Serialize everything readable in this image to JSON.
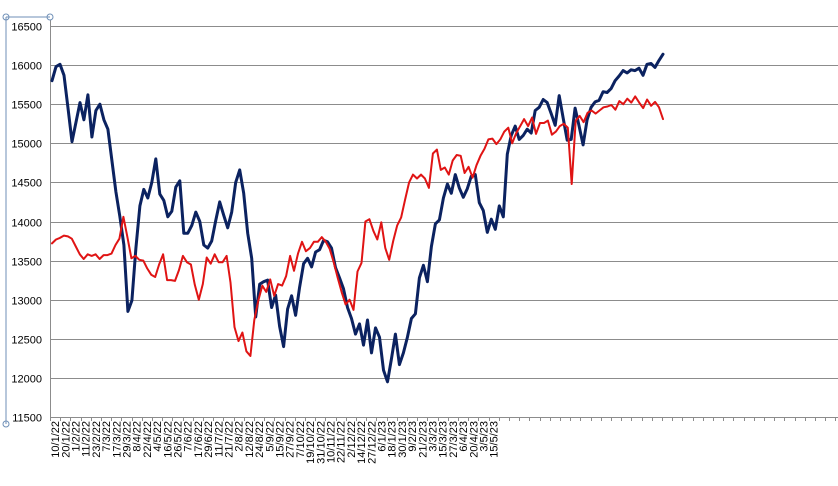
{
  "chart_data": {
    "type": "line",
    "title": "",
    "xlabel": "",
    "ylabel": "",
    "ylim": [
      11500,
      16500
    ],
    "yticks": [
      11500,
      12000,
      12500,
      13000,
      13500,
      14000,
      14500,
      15000,
      15500,
      16000,
      16500
    ],
    "grid": true,
    "legend": "none",
    "x_tick_labels": [
      "10/1/22",
      "20/1/22",
      "1/2/22",
      "11/2/22",
      "23/2/22",
      "7/3/22",
      "17/3/22",
      "29/3/22",
      "8/4/22",
      "22/4/22",
      "4/5/22",
      "16/5/22",
      "26/5/22",
      "7/6/22",
      "17/6/22",
      "29/6/22",
      "11/7/22",
      "21/7/22",
      "2/8/22",
      "12/8/22",
      "24/8/22",
      "5/9/22",
      "15/9/22",
      "27/9/22",
      "7/10/22",
      "19/10/22",
      "31/10/22",
      "10/11/22",
      "22/11/22",
      "2/12/22",
      "14/12/22",
      "27/12/22",
      "6/1/23",
      "18/1/23",
      "30/1/23",
      "9/2/23",
      "21/2/23",
      "3/3/23",
      "15/3/23",
      "27/3/23",
      "6/4/23",
      "20/4/23",
      "3/5/23",
      "15/5/23"
    ],
    "series": [
      {
        "color": "#0b2260",
        "values": [
          15800,
          15980,
          16010,
          15870,
          15450,
          15020,
          15270,
          15520,
          15300,
          15620,
          15080,
          15420,
          15500,
          15300,
          15180,
          14780,
          14380,
          14060,
          13700,
          12850,
          12990,
          13660,
          14200,
          14410,
          14300,
          14500,
          14800,
          14350,
          14270,
          14060,
          14130,
          14440,
          14520,
          13850,
          13850,
          13950,
          14120,
          14000,
          13700,
          13660,
          13750,
          14010,
          14250,
          14080,
          13920,
          14120,
          14500,
          14660,
          14360,
          13850,
          13530,
          12780,
          13200,
          13230,
          13250,
          12900,
          13060,
          12660,
          12400,
          12880,
          13050,
          12800,
          13160,
          13460,
          13530,
          13420,
          13610,
          13640,
          13760,
          13740,
          13660,
          13410,
          13280,
          13140,
          12900,
          12760,
          12560,
          12690,
          12420,
          12740,
          12320,
          12640,
          12520,
          12100,
          11950,
          12240,
          12560,
          12170,
          12320,
          12520,
          12760,
          12820,
          13280,
          13440,
          13230,
          13680,
          13970,
          14020,
          14300,
          14480,
          14360,
          14600,
          14430,
          14310,
          14420,
          14580,
          14600,
          14240,
          14140,
          13860,
          14030,
          13900,
          14200,
          14060,
          14860,
          15100,
          15220,
          15050,
          15100,
          15180,
          15130,
          15420,
          15460,
          15560,
          15520,
          15380,
          15230,
          15610,
          15320,
          15040,
          15050,
          15450,
          15220,
          14980,
          15300,
          15460,
          15530,
          15550,
          15660,
          15650,
          15700,
          15800,
          15860,
          15930,
          15900,
          15940,
          15930,
          15960,
          15870,
          16010,
          16020,
          15970,
          16060,
          16140
        ]
      },
      {
        "color": "#e01414",
        "values": [
          13720,
          13770,
          13790,
          13820,
          13810,
          13780,
          13680,
          13580,
          13520,
          13580,
          13560,
          13580,
          13520,
          13570,
          13570,
          13590,
          13700,
          13780,
          14060,
          13800,
          13530,
          13560,
          13510,
          13500,
          13400,
          13320,
          13290,
          13450,
          13580,
          13250,
          13250,
          13240,
          13380,
          13560,
          13480,
          13450,
          13190,
          13000,
          13200,
          13540,
          13460,
          13580,
          13480,
          13480,
          13560,
          13220,
          12650,
          12470,
          12580,
          12340,
          12280,
          12740,
          12990,
          13180,
          13100,
          13260,
          13050,
          13200,
          13180,
          13300,
          13560,
          13370,
          13590,
          13740,
          13620,
          13660,
          13740,
          13740,
          13800,
          13740,
          13650,
          13480,
          13280,
          13100,
          12940,
          13000,
          12870,
          13360,
          13470,
          14000,
          14030,
          13880,
          13770,
          13990,
          13660,
          13510,
          13750,
          13950,
          14050,
          14280,
          14500,
          14600,
          14550,
          14600,
          14550,
          14430,
          14870,
          14920,
          14660,
          14690,
          14600,
          14780,
          14850,
          14840,
          14620,
          14700,
          14560,
          14720,
          14840,
          14930,
          15050,
          15060,
          14990,
          15050,
          15150,
          15200,
          15000,
          15130,
          15220,
          15310,
          15220,
          15330,
          15120,
          15260,
          15260,
          15290,
          15110,
          15150,
          15220,
          15250,
          15200,
          14480,
          15290,
          15350,
          15270,
          15390,
          15420,
          15380,
          15420,
          15460,
          15470,
          15490,
          15430,
          15540,
          15500,
          15570,
          15520,
          15600,
          15520,
          15450,
          15560,
          15480,
          15530,
          15460,
          15310
        ]
      }
    ]
  }
}
